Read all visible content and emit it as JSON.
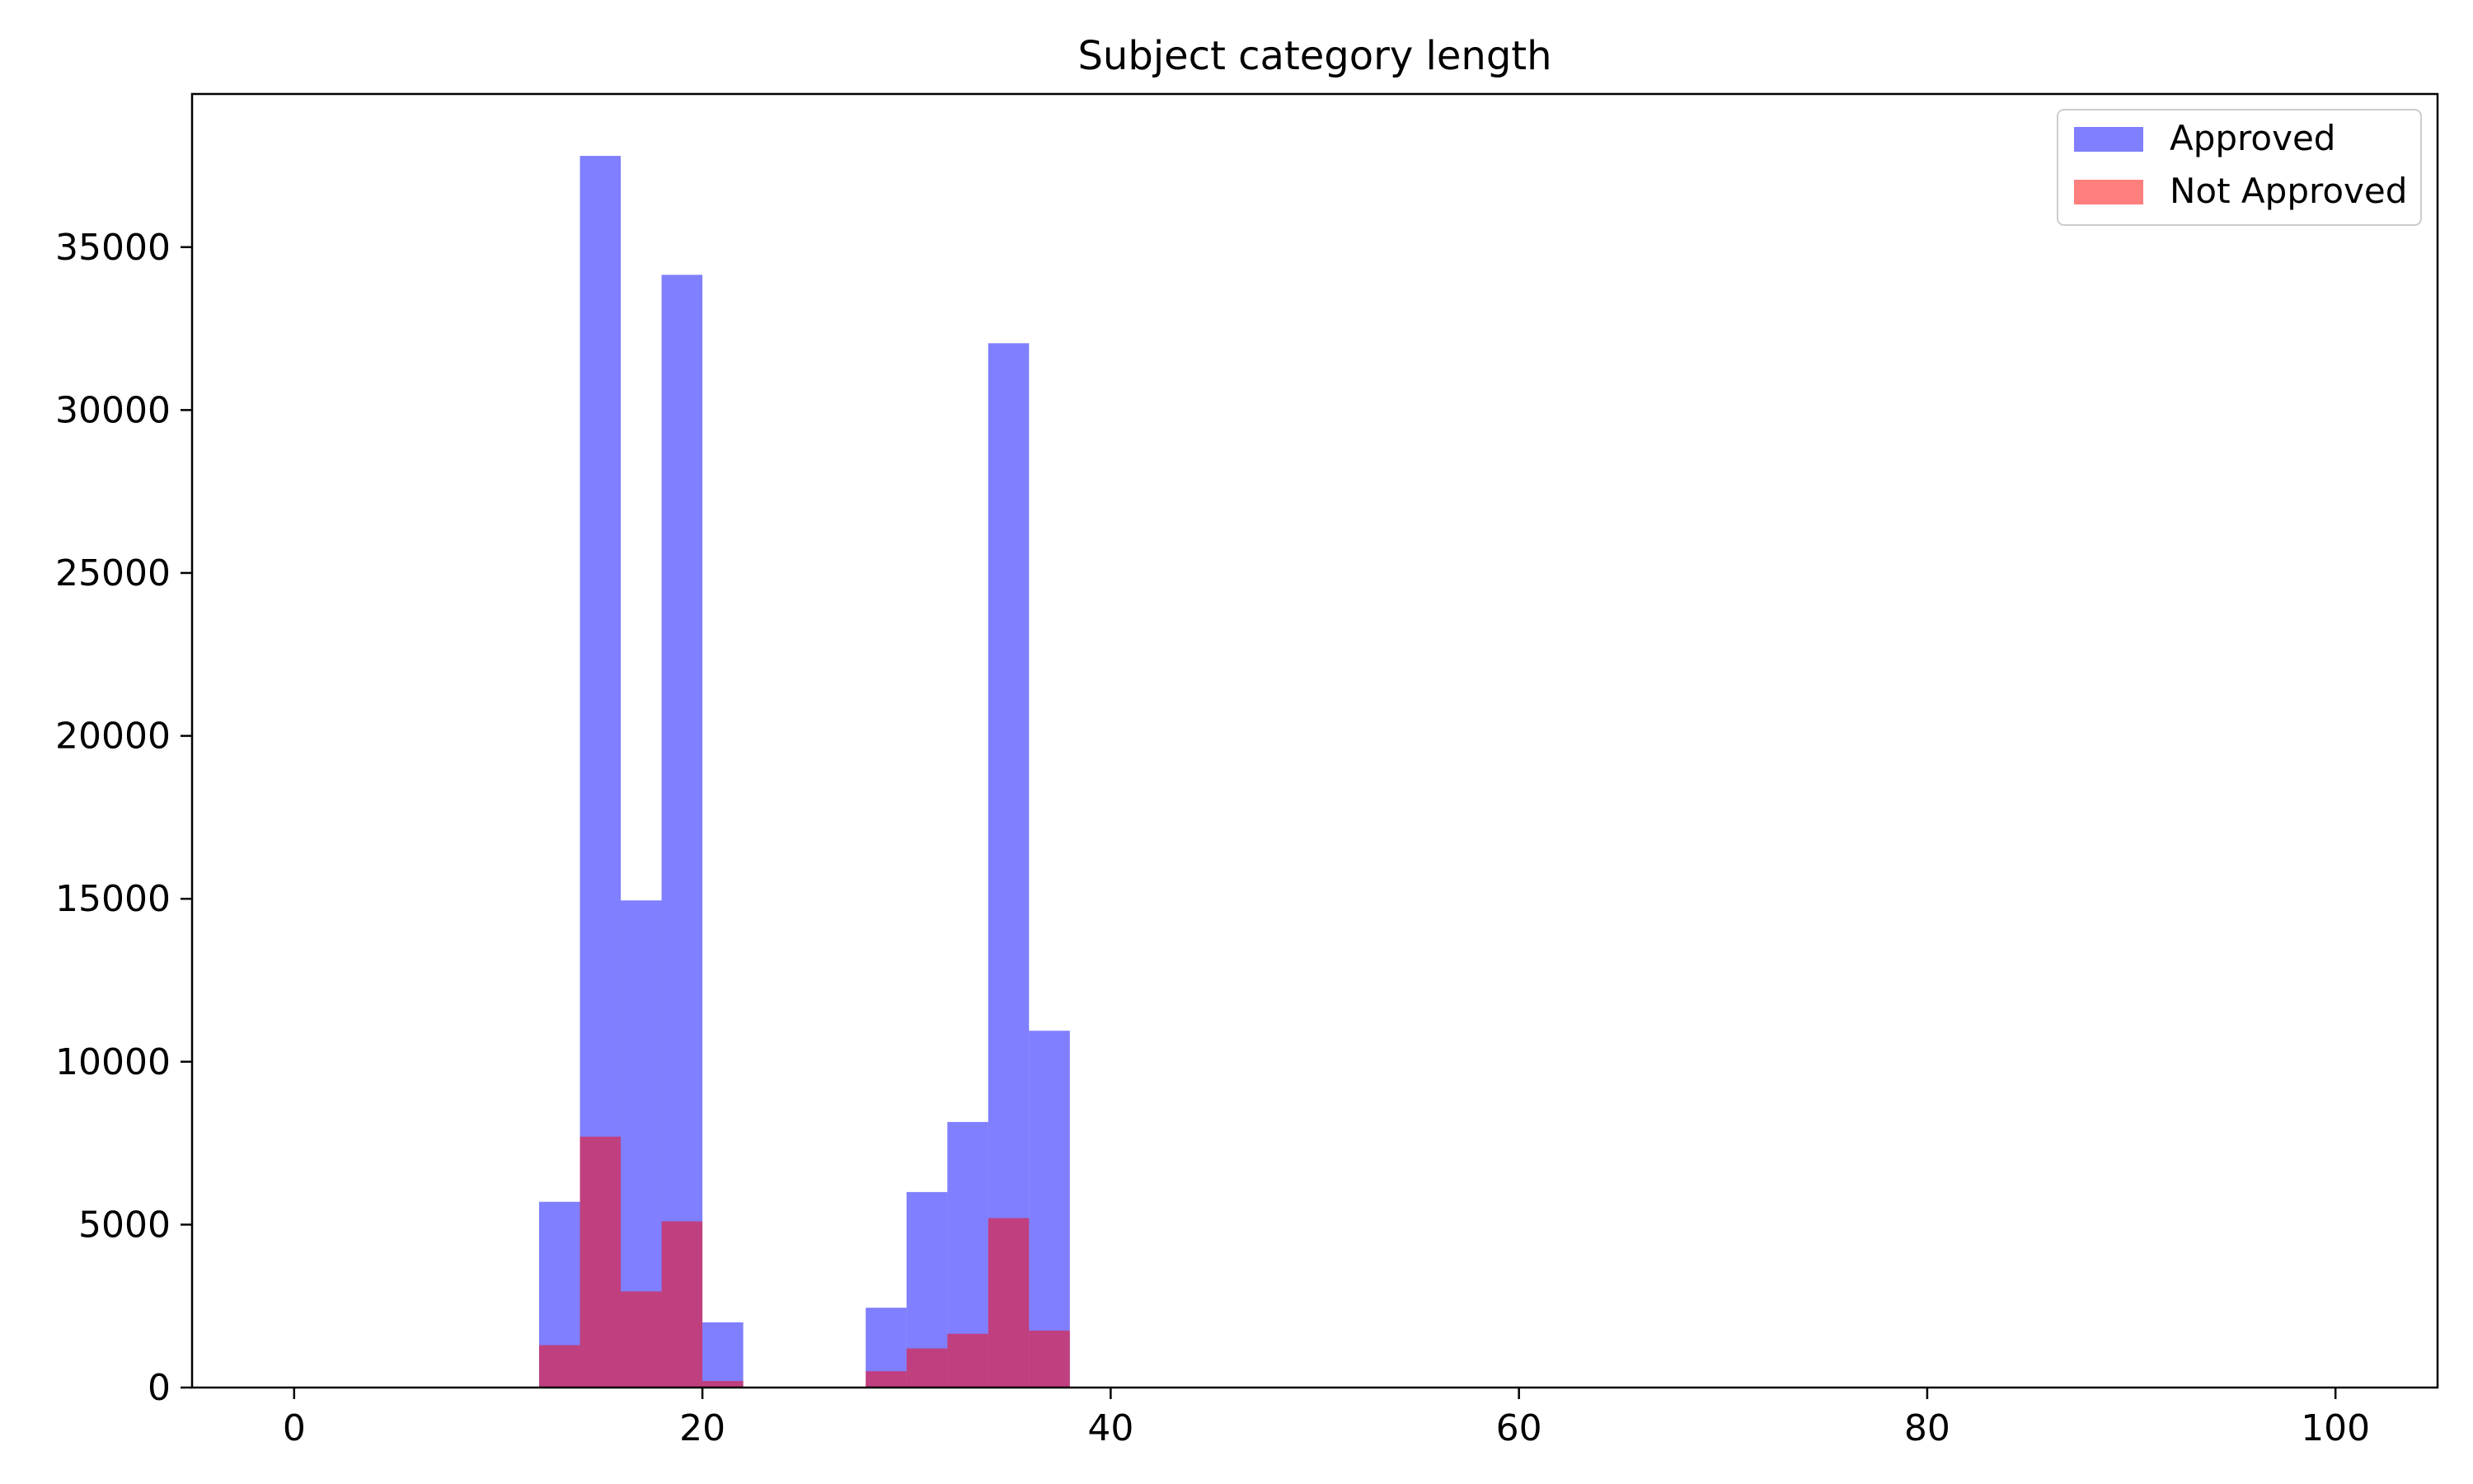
{
  "chart_data": {
    "type": "bar",
    "title": "Subject category length",
    "xlabel": "",
    "ylabel": "",
    "xlim": [
      -5,
      105
    ],
    "ylim": [
      0,
      39700
    ],
    "x_ticks": [
      0,
      20,
      40,
      60,
      80,
      100
    ],
    "y_ticks": [
      0,
      5000,
      10000,
      15000,
      20000,
      25000,
      30000,
      35000
    ],
    "bin_width": 2,
    "grid": false,
    "legend_position": "top-right",
    "series": [
      {
        "name": "Approved",
        "color": "#0000ff",
        "opacity": 0.5,
        "bins": [
          {
            "start": 12,
            "end": 14,
            "value": 5700
          },
          {
            "start": 14,
            "end": 16,
            "value": 37800
          },
          {
            "start": 16,
            "end": 18,
            "value": 14950
          },
          {
            "start": 18,
            "end": 20,
            "value": 34150
          },
          {
            "start": 20,
            "end": 22,
            "value": 2000
          },
          {
            "start": 28,
            "end": 30,
            "value": 2450
          },
          {
            "start": 30,
            "end": 32,
            "value": 6000
          },
          {
            "start": 32,
            "end": 34,
            "value": 8150
          },
          {
            "start": 34,
            "end": 36,
            "value": 32050
          },
          {
            "start": 36,
            "end": 38,
            "value": 10950
          }
        ]
      },
      {
        "name": "Not Approved",
        "color": "#ff0000",
        "opacity": 0.5,
        "bins": [
          {
            "start": 12,
            "end": 14,
            "value": 1300
          },
          {
            "start": 14,
            "end": 16,
            "value": 7700
          },
          {
            "start": 16,
            "end": 18,
            "value": 2950
          },
          {
            "start": 18,
            "end": 20,
            "value": 5100
          },
          {
            "start": 20,
            "end": 22,
            "value": 200
          },
          {
            "start": 28,
            "end": 30,
            "value": 500
          },
          {
            "start": 30,
            "end": 32,
            "value": 1200
          },
          {
            "start": 32,
            "end": 34,
            "value": 1650
          },
          {
            "start": 34,
            "end": 36,
            "value": 5200
          },
          {
            "start": 36,
            "end": 38,
            "value": 1750
          }
        ]
      }
    ]
  }
}
